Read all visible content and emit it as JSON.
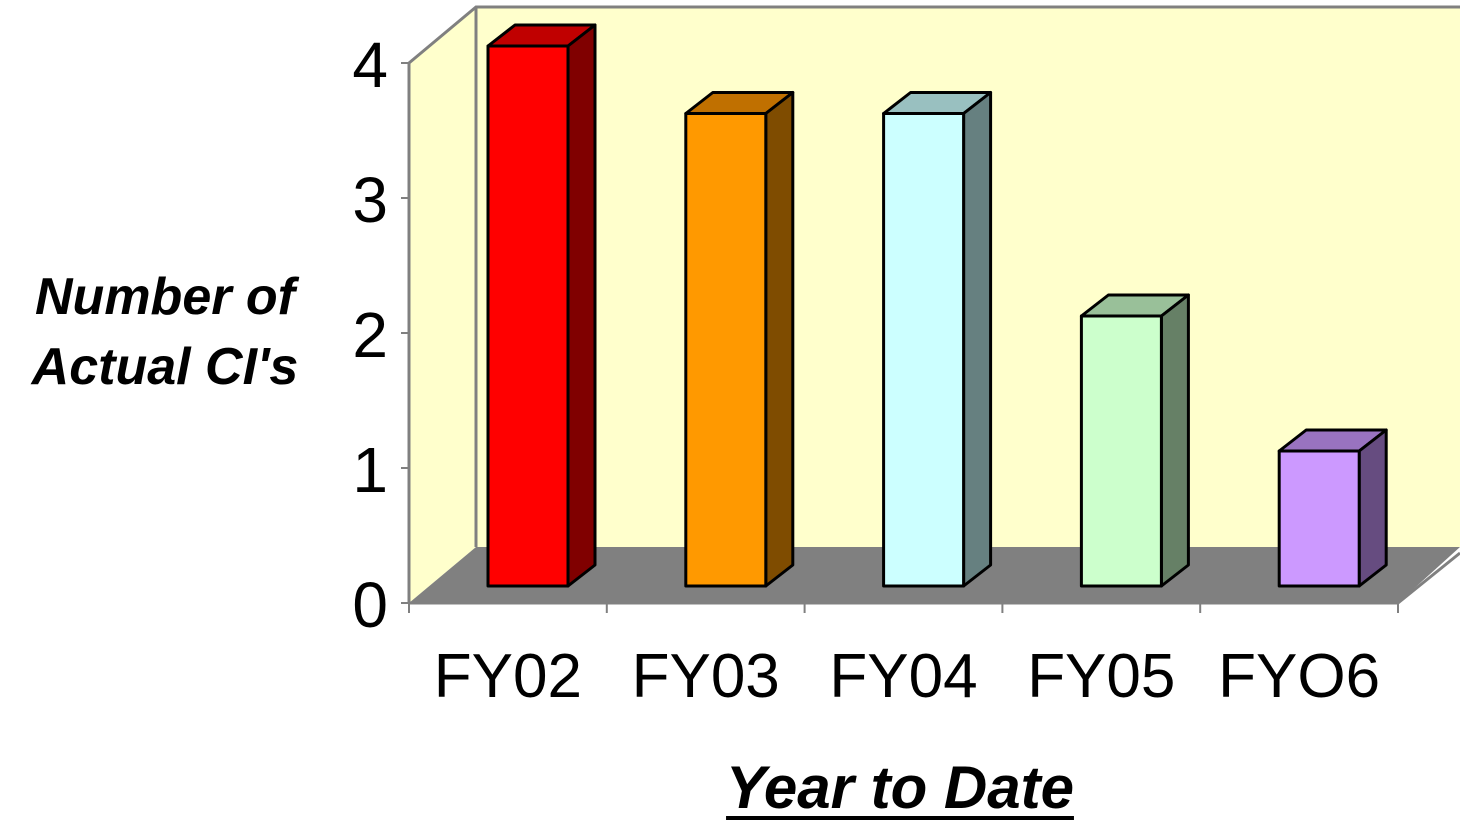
{
  "chart_data": {
    "type": "bar",
    "title": "",
    "xlabel": "Year to Date",
    "ylabel_lines": [
      "Number of",
      "Actual CI's"
    ],
    "categories": [
      "FY02",
      "FY03",
      "FY04",
      "FY05",
      "FYO6"
    ],
    "values": [
      4,
      3.5,
      3.5,
      2,
      1
    ],
    "ylim": [
      0,
      4
    ],
    "yticks": [
      "0",
      "1",
      "2",
      "3",
      "4"
    ],
    "grid": false,
    "legend": "none",
    "style": "3d-column",
    "wall_color": "#FFFFCC",
    "floor_color": "#808080",
    "bar_colors": [
      {
        "front": "#FF0000",
        "side": "#800000",
        "top": "#C00000"
      },
      {
        "front": "#FF9900",
        "side": "#7F4C00",
        "top": "#C07000"
      },
      {
        "front": "#CCFFFF",
        "side": "#668080",
        "top": "#99C0C0"
      },
      {
        "front": "#CCFFCC",
        "side": "#668066",
        "top": "#99C099"
      },
      {
        "front": "#CC99FF",
        "side": "#664C80",
        "top": "#9973C0"
      }
    ]
  }
}
